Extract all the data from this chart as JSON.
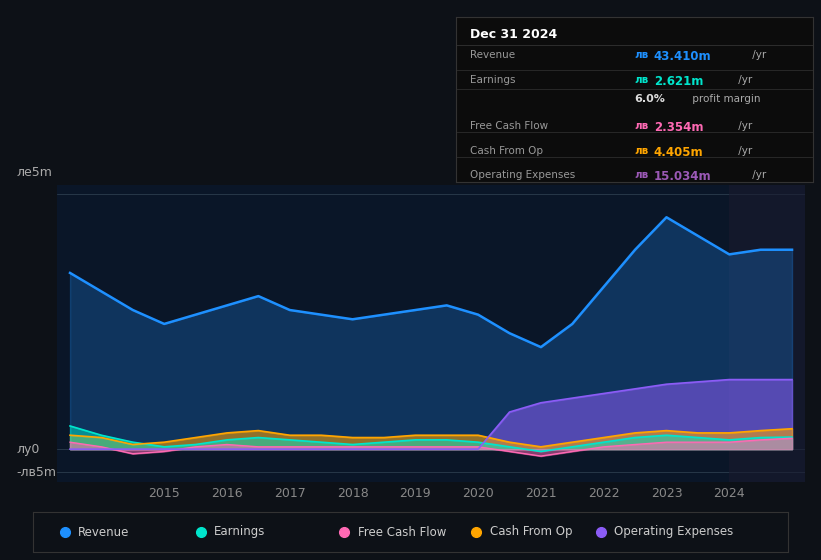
{
  "bg_color": "#0d1117",
  "chart_area_color": "#0a1628",
  "years": [
    2013.5,
    2014.0,
    2014.5,
    2015.0,
    2015.5,
    2016.0,
    2016.5,
    2017.0,
    2017.5,
    2018.0,
    2018.5,
    2019.0,
    2019.5,
    2020.0,
    2020.5,
    2021.0,
    2021.5,
    2022.0,
    2022.5,
    2023.0,
    2023.5,
    2024.0,
    2024.5,
    2025.0
  ],
  "revenue": [
    38,
    34,
    30,
    27,
    29,
    31,
    33,
    30,
    29,
    28,
    29,
    30,
    31,
    29,
    25,
    22,
    27,
    35,
    43,
    50,
    46,
    42,
    43,
    43
  ],
  "earnings": [
    5,
    3,
    1.5,
    0.5,
    1,
    2,
    2.5,
    2,
    1.5,
    1,
    1.5,
    2,
    2,
    1.5,
    0.5,
    -0.5,
    0.5,
    1.5,
    2.5,
    3,
    2.5,
    2,
    2.5,
    2.6
  ],
  "free_cash_flow": [
    1.5,
    0.5,
    -1,
    -0.5,
    0.5,
    1,
    0.5,
    0.5,
    0.5,
    0.5,
    0.5,
    0.5,
    0.5,
    0.5,
    -0.5,
    -1.5,
    -0.5,
    0.5,
    1,
    1.5,
    1.5,
    1.5,
    2,
    2.35
  ],
  "cash_from_op": [
    3,
    2.5,
    1,
    1.5,
    2.5,
    3.5,
    4,
    3,
    3,
    2.5,
    2.5,
    3,
    3,
    3,
    1.5,
    0.5,
    1.5,
    2.5,
    3.5,
    4,
    3.5,
    3.5,
    4,
    4.4
  ],
  "operating_expenses": [
    0,
    0,
    0,
    0,
    0,
    0,
    0,
    0,
    0,
    0,
    0,
    0,
    0,
    0,
    8,
    10,
    11,
    12,
    13,
    14,
    14.5,
    15,
    15,
    15
  ],
  "colors": {
    "revenue": "#1e90ff",
    "earnings": "#00e5cc",
    "free_cash_flow": "#ff69b4",
    "cash_from_op": "#ffa500",
    "operating_expenses": "#8b5cf6"
  },
  "legend": [
    {
      "label": "Revenue",
      "color": "#1e90ff"
    },
    {
      "label": "Earnings",
      "color": "#00e5cc"
    },
    {
      "label": "Free Cash Flow",
      "color": "#ff69b4"
    },
    {
      "label": "Cash From Op",
      "color": "#ffa500"
    },
    {
      "label": "Operating Expenses",
      "color": "#8b5cf6"
    }
  ],
  "xlim": [
    2013.3,
    2025.2
  ],
  "ylim": [
    -7,
    57
  ],
  "xticks": [
    2015,
    2016,
    2017,
    2018,
    2019,
    2020,
    2021,
    2022,
    2023,
    2024
  ],
  "highlight_x_start": 2024.0,
  "highlight_x_end": 2025.2,
  "ylabel_top": "ле5m",
  "ylabel_mid": "лу0",
  "ylabel_bot": "-лв5m",
  "info_title": "Dec 31 2024",
  "info_rows": [
    {
      "label": "Revenue",
      "prefix": "лв",
      "value": "43.410m",
      "color": "#1e90ff",
      "suffix": " /yr",
      "extra": ""
    },
    {
      "label": "Earnings",
      "prefix": "лв",
      "value": "2.621m",
      "color": "#00e5cc",
      "suffix": " /yr",
      "extra": ""
    },
    {
      "label": "",
      "prefix": "",
      "value": "6.0%",
      "color": "#dddddd",
      "suffix": " profit margin",
      "extra": "bold"
    },
    {
      "label": "Free Cash Flow",
      "prefix": "лв",
      "value": "2.354m",
      "color": "#ff69b4",
      "suffix": " /yr",
      "extra": ""
    },
    {
      "label": "Cash From Op",
      "prefix": "лв",
      "value": "4.405m",
      "color": "#ffa500",
      "suffix": " /yr",
      "extra": ""
    },
    {
      "label": "Operating Expenses",
      "prefix": "лв",
      "value": "15.034m",
      "color": "#9b59b6",
      "suffix": " /yr",
      "extra": ""
    }
  ]
}
